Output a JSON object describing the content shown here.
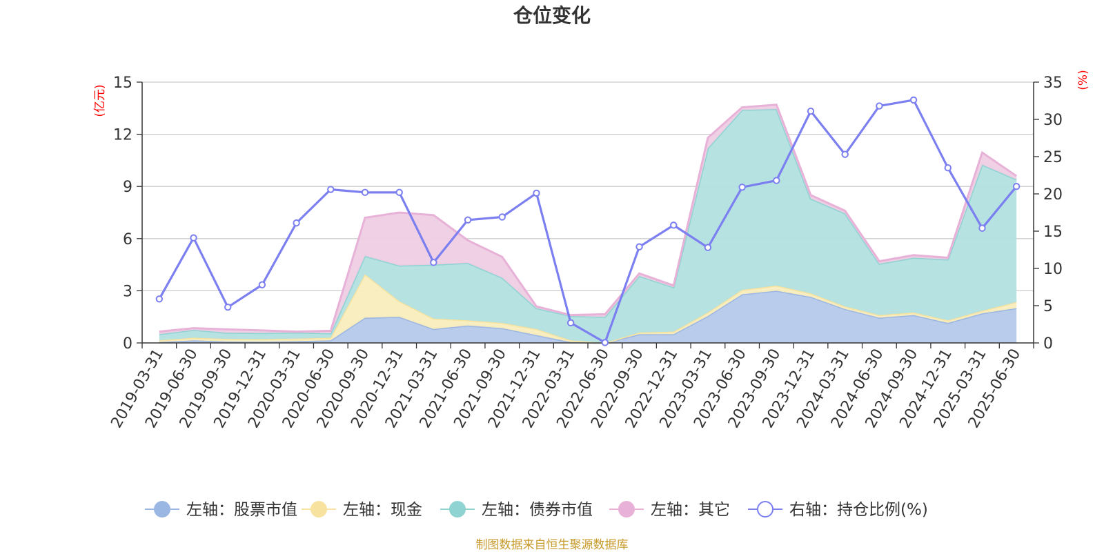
{
  "chart_data": {
    "type": "area",
    "title": "仓位变化",
    "left_axis_unit": "(亿元)",
    "right_axis_unit": "(%)",
    "left_ylim": [
      0,
      15
    ],
    "left_ticks": [
      "0",
      "3",
      "6",
      "9",
      "12",
      "15"
    ],
    "right_ylim": [
      0,
      35
    ],
    "right_ticks": [
      "0",
      "5",
      "10",
      "15",
      "20",
      "25",
      "30",
      "35"
    ],
    "categories": [
      "2019-03-31",
      "2019-06-30",
      "2019-09-30",
      "2019-12-31",
      "2020-03-31",
      "2020-06-30",
      "2020-09-30",
      "2020-12-31",
      "2021-03-31",
      "2021-06-30",
      "2021-09-30",
      "2021-12-31",
      "2022-03-31",
      "2022-06-30",
      "2022-09-30",
      "2022-12-31",
      "2023-03-31",
      "2023-06-30",
      "2023-09-30",
      "2023-12-31",
      "2024-03-31",
      "2024-06-30",
      "2024-09-30",
      "2024-12-31",
      "2025-03-31",
      "2025-06-30"
    ],
    "stacked_series": [
      {
        "name": "左轴：股票市值",
        "axis": "left",
        "color": "#9ab6e3",
        "fill": "#b6c9ea",
        "values": [
          0.05,
          0.15,
          0.08,
          0.07,
          0.1,
          0.15,
          1.45,
          1.5,
          0.8,
          1.0,
          0.85,
          0.45,
          0.05,
          0.0,
          0.5,
          0.5,
          1.55,
          2.8,
          3.0,
          2.65,
          1.95,
          1.45,
          1.6,
          1.15,
          1.7,
          2.0
        ]
      },
      {
        "name": "左轴：现金",
        "axis": "left",
        "color": "#f8e2a0",
        "fill": "#f9edbc",
        "values": [
          0.1,
          0.15,
          0.15,
          0.15,
          0.15,
          0.15,
          2.5,
          0.9,
          0.6,
          0.3,
          0.3,
          0.35,
          0.1,
          0.0,
          0.1,
          0.15,
          0.2,
          0.25,
          0.3,
          0.2,
          0.15,
          0.15,
          0.15,
          0.15,
          0.15,
          0.35
        ]
      },
      {
        "name": "左轴：债券市值",
        "axis": "left",
        "color": "#8fd3d3",
        "fill": "#b2e0e0",
        "values": [
          0.35,
          0.45,
          0.35,
          0.35,
          0.35,
          0.25,
          1.05,
          2.05,
          3.1,
          3.3,
          2.6,
          1.2,
          1.4,
          1.5,
          3.25,
          2.55,
          9.45,
          10.35,
          10.15,
          5.45,
          5.35,
          2.95,
          3.15,
          3.5,
          8.4,
          7.05
        ]
      },
      {
        "name": "左轴：其它",
        "axis": "left",
        "color": "#e8b2d8",
        "fill": "#eecde3",
        "values": [
          0.15,
          0.1,
          0.2,
          0.15,
          0.05,
          0.15,
          2.2,
          3.05,
          2.85,
          1.3,
          1.2,
          0.1,
          0.05,
          0.15,
          0.15,
          0.1,
          0.6,
          0.15,
          0.25,
          0.2,
          0.15,
          0.15,
          0.15,
          0.1,
          0.7,
          0.2
        ]
      }
    ],
    "line_series": {
      "name": "右轴：持仓比例(%)",
      "axis": "right",
      "color": "#7b7ff0",
      "values": [
        5.9,
        14.1,
        4.8,
        7.8,
        16.1,
        20.6,
        20.2,
        20.2,
        10.8,
        16.5,
        16.9,
        20.1,
        2.7,
        0.05,
        12.9,
        15.8,
        12.8,
        20.9,
        21.8,
        31.1,
        25.3,
        31.8,
        32.6,
        23.5,
        15.4,
        21.0
      ]
    },
    "legend_position": "bottom",
    "grid": true
  },
  "source_text": "制图数据来自恒生聚源数据库"
}
